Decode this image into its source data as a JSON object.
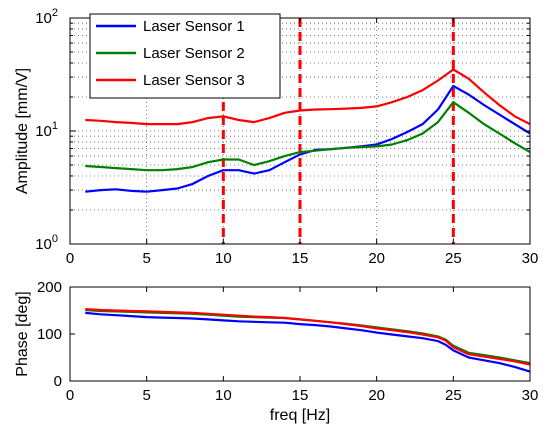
{
  "chart_data": [
    {
      "type": "line",
      "id": "amplitude",
      "ylabel": "Amplitude [mm/V]",
      "xlabel": "",
      "yscale": "log",
      "xlim": [
        0,
        30
      ],
      "ylim": [
        1,
        100
      ],
      "grid": true,
      "xticks": [
        0,
        5,
        10,
        15,
        20,
        25,
        30
      ],
      "x_tick_labels": [
        "0",
        "5",
        "10",
        "15",
        "20",
        "25",
        "30"
      ],
      "yticks": [
        1,
        10,
        100
      ],
      "y_tick_labels": [
        {
          "base": "10",
          "exp": "0"
        },
        {
          "base": "10",
          "exp": "1"
        },
        {
          "base": "10",
          "exp": "2"
        }
      ],
      "legend_position": "top-left",
      "vertical_markers": [
        10,
        15,
        25
      ],
      "series": [
        {
          "name": "Laser Sensor 1",
          "color": "#0000ff",
          "x": [
            1,
            2,
            3,
            4,
            5,
            6,
            7,
            8,
            9,
            10,
            11,
            12,
            13,
            14,
            15,
            16,
            17,
            18,
            19,
            20,
            21,
            22,
            23,
            24,
            25,
            26,
            27,
            28,
            29,
            30
          ],
          "y": [
            2.9,
            3.0,
            3.05,
            2.95,
            2.9,
            3.0,
            3.1,
            3.4,
            4.0,
            4.5,
            4.5,
            4.2,
            4.5,
            5.3,
            6.2,
            6.8,
            6.9,
            7.1,
            7.3,
            7.6,
            8.5,
            9.8,
            11.5,
            15.5,
            25.0,
            21.0,
            17.0,
            14.0,
            11.5,
            9.5
          ]
        },
        {
          "name": "Laser Sensor 2",
          "color": "#008000",
          "x": [
            1,
            2,
            3,
            4,
            5,
            6,
            7,
            8,
            9,
            10,
            11,
            12,
            13,
            14,
            15,
            16,
            17,
            18,
            19,
            20,
            21,
            22,
            23,
            24,
            25,
            26,
            27,
            28,
            29,
            30
          ],
          "y": [
            4.9,
            4.8,
            4.7,
            4.6,
            4.5,
            4.5,
            4.6,
            4.8,
            5.3,
            5.6,
            5.6,
            5.0,
            5.4,
            6.0,
            6.5,
            6.7,
            6.9,
            7.1,
            7.2,
            7.3,
            7.6,
            8.3,
            9.5,
            12.0,
            18.0,
            14.5,
            11.5,
            9.5,
            7.8,
            6.5
          ]
        },
        {
          "name": "Laser Sensor 3",
          "color": "#ff0000",
          "x": [
            1,
            2,
            3,
            4,
            5,
            6,
            7,
            8,
            9,
            10,
            11,
            12,
            13,
            14,
            15,
            16,
            17,
            18,
            19,
            20,
            21,
            22,
            23,
            24,
            25,
            26,
            27,
            28,
            29,
            30
          ],
          "y": [
            12.5,
            12.3,
            12.0,
            11.8,
            11.5,
            11.5,
            11.5,
            12.0,
            13.0,
            13.5,
            12.5,
            12.0,
            13.0,
            14.5,
            15.2,
            15.5,
            15.6,
            15.8,
            16.0,
            16.5,
            18.0,
            20.0,
            23.0,
            28.0,
            35.0,
            29.0,
            22.0,
            17.0,
            13.5,
            11.5
          ]
        }
      ]
    },
    {
      "type": "line",
      "id": "phase",
      "ylabel": "Phase [deg]",
      "xlabel": "freq [Hz]",
      "yscale": "linear",
      "xlim": [
        0,
        30
      ],
      "ylim": [
        0,
        200
      ],
      "grid": false,
      "xticks": [
        0,
        5,
        10,
        15,
        20,
        25,
        30
      ],
      "x_tick_labels": [
        "0",
        "5",
        "10",
        "15",
        "20",
        "25",
        "30"
      ],
      "yticks": [
        0,
        100,
        200
      ],
      "y_tick_labels": [
        "0",
        "100",
        "200"
      ],
      "series": [
        {
          "name": "Laser Sensor 1",
          "color": "#0000ff",
          "x": [
            1,
            2,
            3,
            4,
            5,
            6,
            7,
            8,
            9,
            10,
            11,
            12,
            13,
            14,
            15,
            16,
            17,
            18,
            19,
            20,
            21,
            22,
            23,
            24,
            24.5,
            25,
            26,
            27,
            28,
            29,
            30
          ],
          "y": [
            145,
            142,
            140,
            138,
            136,
            135,
            134,
            133,
            131,
            129,
            127,
            126,
            125,
            124,
            121,
            119,
            116,
            112,
            108,
            103,
            99,
            95,
            91,
            85,
            77,
            65,
            50,
            44,
            38,
            30,
            20
          ]
        },
        {
          "name": "Laser Sensor 2",
          "color": "#008000",
          "x": [
            1,
            2,
            3,
            4,
            5,
            6,
            7,
            8,
            9,
            10,
            11,
            12,
            13,
            14,
            15,
            16,
            17,
            18,
            19,
            20,
            21,
            22,
            23,
            24,
            24.5,
            25,
            26,
            27,
            28,
            29,
            30
          ],
          "y": [
            151,
            149,
            148,
            147,
            146,
            145,
            144,
            143,
            141,
            139,
            137,
            136,
            135,
            134,
            131,
            128,
            125,
            122,
            118,
            114,
            110,
            106,
            101,
            95,
            88,
            75,
            60,
            55,
            50,
            44,
            38
          ]
        },
        {
          "name": "Laser Sensor 3",
          "color": "#ff0000",
          "x": [
            1,
            2,
            3,
            4,
            5,
            6,
            7,
            8,
            9,
            10,
            11,
            12,
            13,
            14,
            15,
            16,
            17,
            18,
            19,
            20,
            21,
            22,
            23,
            24,
            24.5,
            25,
            26,
            27,
            28,
            29,
            30
          ],
          "y": [
            153,
            151,
            150,
            149,
            148,
            147,
            146,
            145,
            143,
            141,
            139,
            137,
            136,
            134,
            131,
            128,
            125,
            121,
            117,
            112,
            108,
            104,
            99,
            93,
            86,
            72,
            57,
            52,
            47,
            42,
            35
          ]
        }
      ]
    }
  ]
}
